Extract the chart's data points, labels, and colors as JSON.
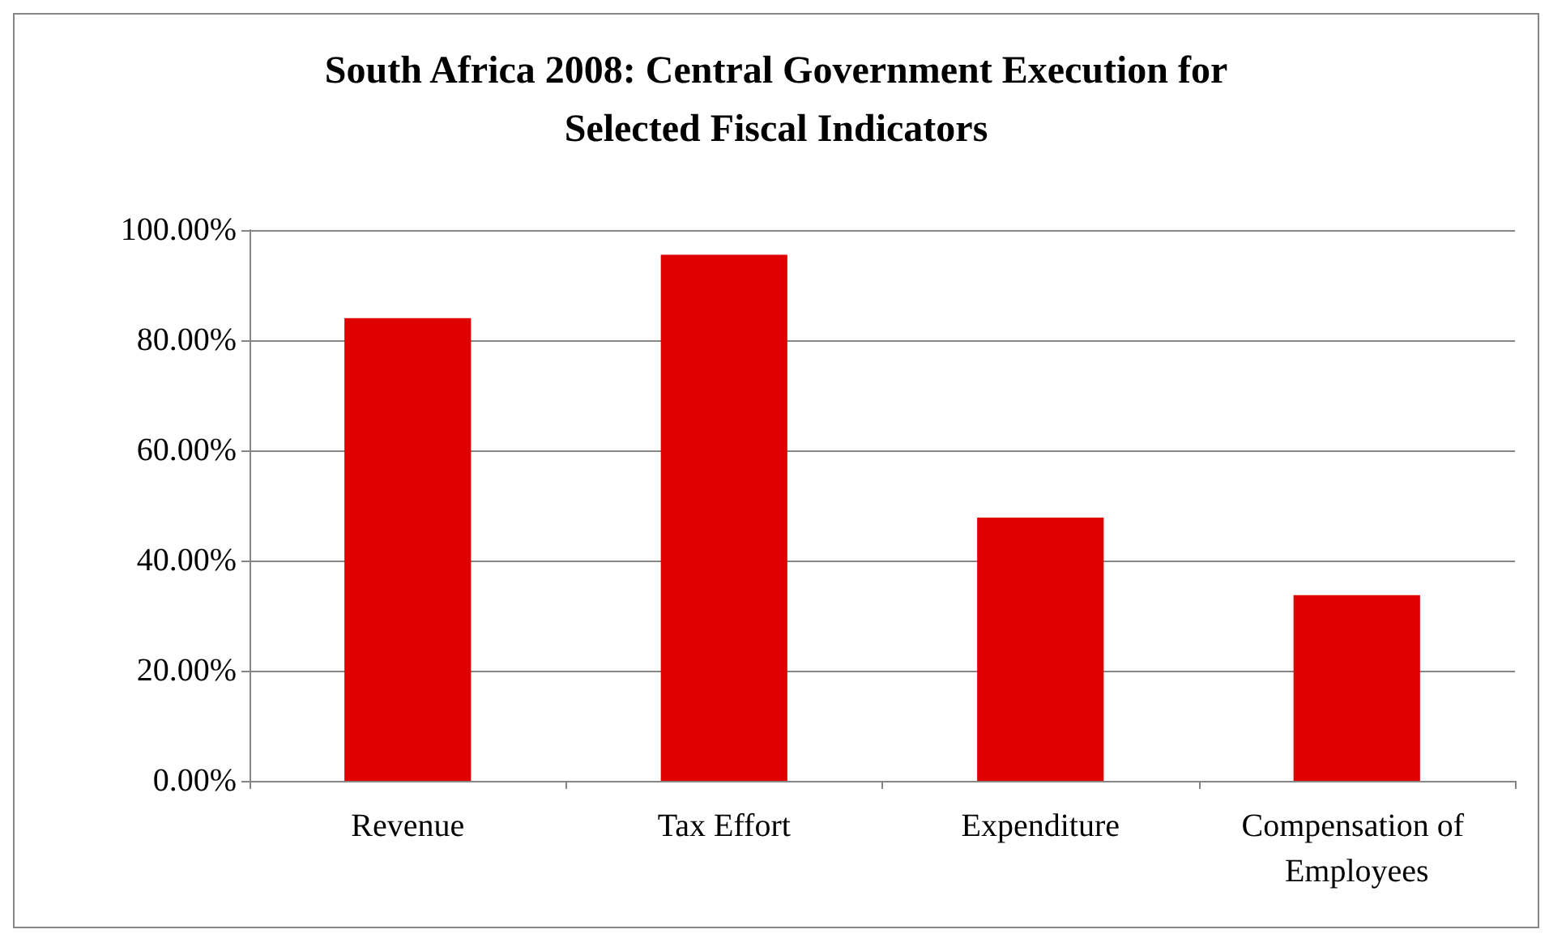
{
  "chart_data": {
    "type": "bar",
    "title": "South Africa 2008: Central Government Execution for\nSelected Fiscal Indicators",
    "categories": [
      "Revenue",
      "Tax Effort",
      "Expenditure",
      "Compensation of Employees"
    ],
    "values": [
      84.0,
      95.5,
      47.8,
      33.7
    ],
    "color": "#e00000",
    "ylim": [
      0,
      100
    ],
    "yticks": [
      {
        "value": 0,
        "label": "0.00%"
      },
      {
        "value": 20,
        "label": "20.00%"
      },
      {
        "value": 40,
        "label": "40.00%"
      },
      {
        "value": 60,
        "label": "60.00%"
      },
      {
        "value": 80,
        "label": "80.00%"
      },
      {
        "value": 100,
        "label": "100.00%"
      }
    ],
    "grid": "y"
  }
}
